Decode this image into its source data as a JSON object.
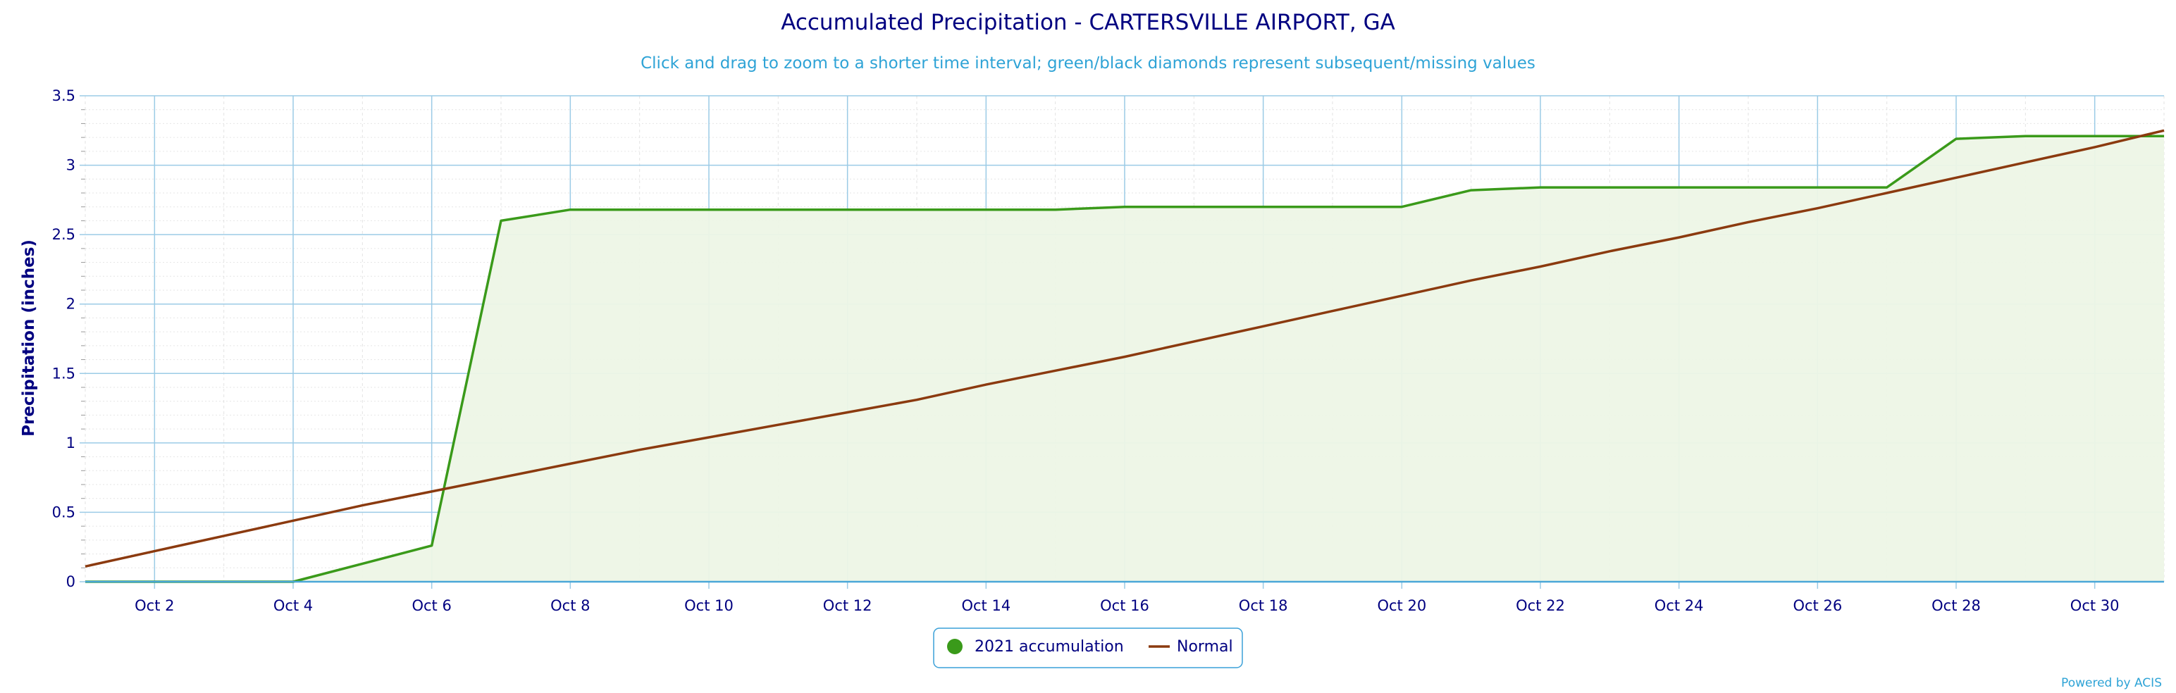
{
  "chart_data": {
    "type": "area",
    "title": "Accumulated Precipitation - CARTERSVILLE AIRPORT, GA",
    "subtitle": "Click and drag to zoom to a shorter time interval; green/black diamonds represent subsequent/missing values",
    "ylabel": "Precipitation (inches)",
    "xlabel": "",
    "xlim": [
      1,
      31
    ],
    "ylim": [
      0,
      3.5
    ],
    "y_ticks": [
      0,
      0.5,
      1,
      1.5,
      2,
      2.5,
      3,
      3.5
    ],
    "y_tick_labels": [
      "0",
      "0.5",
      "1",
      "1.5",
      "2",
      "2.5",
      "3",
      "3.5"
    ],
    "x_ticks": [
      2,
      4,
      6,
      8,
      10,
      12,
      14,
      16,
      18,
      20,
      22,
      24,
      26,
      28,
      30
    ],
    "x_tick_labels": [
      "Oct 2",
      "Oct 4",
      "Oct 6",
      "Oct 8",
      "Oct 10",
      "Oct 12",
      "Oct 14",
      "Oct 16",
      "Oct 18",
      "Oct 20",
      "Oct 22",
      "Oct 24",
      "Oct 26",
      "Oct 28",
      "Oct 30"
    ],
    "grid": true,
    "legend_position": "bottom-center",
    "series": [
      {
        "name": "2021 accumulation",
        "color": "#3a9a1a",
        "fill": "#edf5e6",
        "marker": "circle",
        "x": [
          1,
          2,
          3,
          4,
          5,
          6,
          7,
          8,
          9,
          10,
          11,
          12,
          13,
          14,
          15,
          16,
          17,
          18,
          19,
          20,
          21,
          22,
          23,
          24,
          25,
          26,
          27,
          28,
          29,
          30,
          31
        ],
        "values": [
          0,
          0,
          0,
          0,
          0.13,
          0.26,
          2.6,
          2.68,
          2.68,
          2.68,
          2.68,
          2.68,
          2.68,
          2.68,
          2.68,
          2.7,
          2.7,
          2.7,
          2.7,
          2.7,
          2.82,
          2.84,
          2.84,
          2.84,
          2.84,
          2.84,
          2.84,
          3.19,
          3.21,
          3.21,
          3.21
        ]
      },
      {
        "name": "Normal",
        "color": "#8b3a0f",
        "marker": "line",
        "x": [
          1,
          2,
          3,
          4,
          5,
          6,
          7,
          8,
          9,
          10,
          11,
          12,
          13,
          14,
          15,
          16,
          17,
          18,
          19,
          20,
          21,
          22,
          23,
          24,
          25,
          26,
          27,
          28,
          29,
          30,
          31
        ],
        "values": [
          0.11,
          0.22,
          0.33,
          0.44,
          0.55,
          0.65,
          0.75,
          0.85,
          0.95,
          1.04,
          1.13,
          1.22,
          1.31,
          1.42,
          1.52,
          1.62,
          1.73,
          1.84,
          1.95,
          2.06,
          2.17,
          2.27,
          2.38,
          2.48,
          2.59,
          2.69,
          2.8,
          2.91,
          3.02,
          3.13,
          3.25
        ]
      }
    ]
  },
  "credit": "Powered by ACIS"
}
